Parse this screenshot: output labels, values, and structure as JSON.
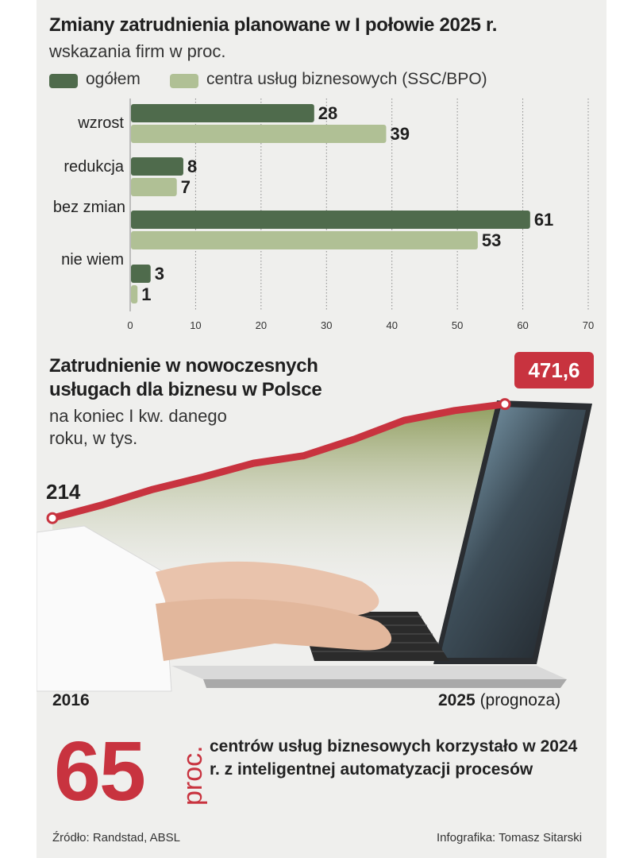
{
  "chart_data": [
    {
      "type": "bar",
      "orientation": "horizontal",
      "title": "Zmiany zatrudnienia planowane w I połowie 2025 r.",
      "subtitle": "wskazania firm w proc.",
      "categories": [
        "wzrost",
        "redukcja",
        "bez zmian",
        "nie wiem"
      ],
      "series": [
        {
          "name": "ogółem",
          "color": "#4f6b4c",
          "values": [
            28,
            8,
            61,
            3
          ]
        },
        {
          "name": "centra usług biznesowych (SSC/BPO)",
          "color": "#b0c095",
          "values": [
            39,
            7,
            53,
            1
          ]
        }
      ],
      "xlim": [
        0,
        70
      ],
      "xticks": [
        "0",
        "10",
        "20",
        "30",
        "40",
        "50",
        "60",
        "70"
      ],
      "grid": "vertical dashed",
      "legend": "top-left"
    },
    {
      "type": "line",
      "title": "Zatrudnienie w nowoczesnych usługach dla biznesu w Polsce",
      "subtitle": "na koniec I kw. danego roku, w tys.",
      "x_start_label": "2016",
      "x_end_label": "2025",
      "x_end_note": "(prognoza)",
      "start_label": "214",
      "end_label": "471,6",
      "x": [
        2016,
        2017,
        2018,
        2019,
        2020,
        2021,
        2022,
        2023,
        2024,
        2025
      ],
      "y": [
        214,
        244,
        279,
        307,
        338,
        355,
        392,
        435,
        457,
        471.6
      ],
      "color": "#c8333f"
    }
  ],
  "stat": {
    "number": "65",
    "unit": "proc.",
    "text": "centrów usług biznesowych korzystało w 2024 r. z inteligentnej automatyzacji procesów"
  },
  "footer": {
    "source": "Źródło: Randstad, ABSL",
    "credit": "Infografika: Tomasz Sitarski"
  }
}
